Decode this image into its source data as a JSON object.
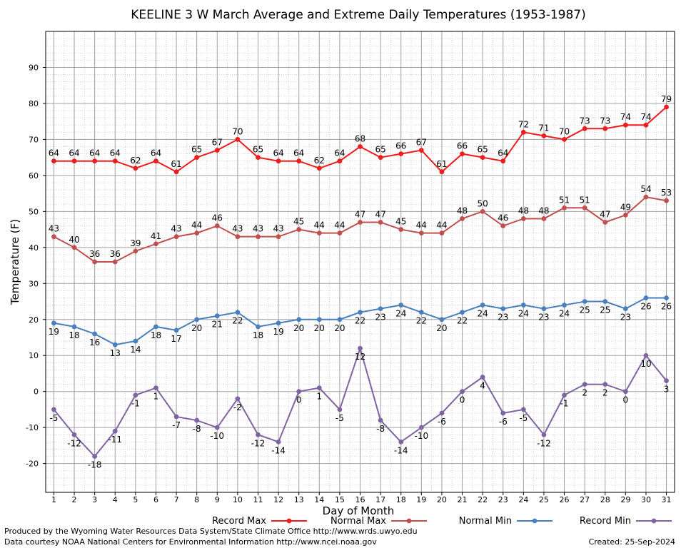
{
  "chart_data": {
    "type": "line",
    "title": "KEELINE 3 W March Average and Extreme Daily Temperatures (1953-1987)",
    "xlabel": "Day of Month",
    "ylabel": "Temperature (F)",
    "xlim": [
      0.6,
      31.4
    ],
    "ylim": [
      -28,
      100
    ],
    "yticks": [
      -20,
      -10,
      0,
      10,
      20,
      30,
      40,
      50,
      60,
      70,
      80,
      90
    ],
    "grid": true,
    "legend_position": "bottom",
    "x": [
      1,
      2,
      3,
      4,
      5,
      6,
      7,
      8,
      9,
      10,
      11,
      12,
      13,
      14,
      15,
      16,
      17,
      18,
      19,
      20,
      21,
      22,
      23,
      24,
      25,
      26,
      27,
      28,
      29,
      30,
      31
    ],
    "series": [
      {
        "name": "Record Max",
        "color": "#ee1c1c",
        "values": [
          64,
          64,
          64,
          64,
          62,
          64,
          61,
          65,
          67,
          70,
          65,
          64,
          64,
          62,
          64,
          68,
          65,
          66,
          67,
          61,
          66,
          65,
          64,
          72,
          71,
          70,
          73,
          73,
          74,
          74,
          79
        ]
      },
      {
        "name": "Normal Max",
        "color": "#c0504d",
        "values": [
          43,
          40,
          36,
          36,
          39,
          41,
          43,
          44,
          46,
          43,
          43,
          43,
          45,
          44,
          44,
          47,
          47,
          45,
          44,
          44,
          48,
          50,
          46,
          48,
          48,
          51,
          51,
          47,
          49,
          54,
          53
        ]
      },
      {
        "name": "Normal Min",
        "color": "#4a7fbf",
        "values": [
          19,
          18,
          16,
          13,
          14,
          18,
          17,
          20,
          21,
          22,
          18,
          19,
          20,
          20,
          20,
          22,
          23,
          24,
          22,
          20,
          22,
          24,
          23,
          24,
          23,
          24,
          25,
          25,
          23,
          26,
          26
        ]
      },
      {
        "name": "Record Min",
        "color": "#8064a2",
        "values": [
          -5,
          -12,
          -18,
          -11,
          -1,
          1,
          -7,
          -8,
          -10,
          -2,
          -12,
          -14,
          0,
          1,
          -5,
          12,
          -8,
          -14,
          -10,
          -6,
          0,
          4,
          -6,
          -5,
          -12,
          -1,
          2,
          2,
          0,
          10,
          3
        ]
      }
    ]
  },
  "footer": {
    "produced_by": "Produced by the Wyoming Water Resources Data System/State Climate Office http://www.wrds.uwyo.edu",
    "courtesy": "Data courtesy NOAA National Centers for Environmental Information http://www.ncei.noaa.gov",
    "created": "Created:  25-Sep-2024"
  }
}
